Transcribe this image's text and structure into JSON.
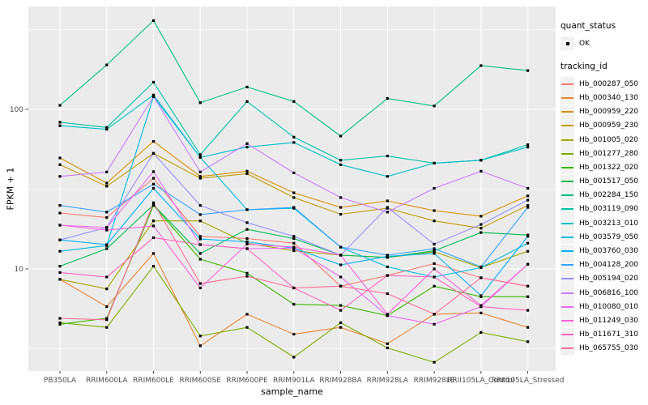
{
  "axes": {
    "x": {
      "title": "sample_name",
      "categories": [
        "PB350LA",
        "RRIM600LA",
        "RRIM600LE",
        "RRIM600SE",
        "RRIM600PE",
        "RRIM901LA",
        "RRIM928BA",
        "RRIM928LA",
        "RRIM928LE",
        "RRII105LA_Control",
        "RRII105LA_Stressed"
      ]
    },
    "y": {
      "title": "FPKM + 1",
      "tick_labels": [
        "100",
        "10"
      ],
      "tick_values": [
        100,
        10
      ],
      "minor_tick_values": [
        316.23,
        31.623,
        3.1623
      ],
      "scale": "log10"
    }
  },
  "legend": {
    "quant_status": {
      "title": "quant_status",
      "items": [
        {
          "label": "OK",
          "symbol": "point"
        }
      ]
    },
    "tracking_id": {
      "title": "tracking_id"
    }
  },
  "style": {
    "panel_background": "#EBEBEB",
    "grid_color": "#FFFFFF",
    "tick_label_color": "#4D4D4D",
    "point_color": "#000000",
    "legend_key_background": "#F2F2F2"
  },
  "chart_data": {
    "type": "line",
    "xlabel": "sample_name",
    "ylabel": "FPKM + 1",
    "yscale": "log10",
    "ylim": [
      2.3,
      440
    ],
    "grid": "major+minor white on grey panel",
    "legend_position": "right",
    "point_marker": "small black square on every data point",
    "categories": [
      "PB350LA",
      "RRIM600LA",
      "RRIM600LE",
      "RRIM600SE",
      "RRIM600PE",
      "RRIM901LA",
      "RRIM928BA",
      "RRIM928LA",
      "RRIM928LE",
      "RRII105LA_Control",
      "RRII105LA_Stressed"
    ],
    "series": [
      {
        "name": "Hb_000287_050",
        "color": "#F8766D",
        "values": [
          22.4,
          21,
          37,
          16,
          15.5,
          14.5,
          7.8,
          9.1,
          10.8,
          8.8,
          7.8
        ]
      },
      {
        "name": "Hb_000340_130",
        "color": "#EA8331",
        "values": [
          8.6,
          5.8,
          12.5,
          3.3,
          5.2,
          3.9,
          4.3,
          3.4,
          5.2,
          5.3,
          4.3
        ]
      },
      {
        "name": "Hb_000959_220",
        "color": "#D89000",
        "values": [
          49.6,
          34.5,
          63,
          38,
          41,
          30,
          24.3,
          26.7,
          23.2,
          21.4,
          28.7
        ]
      },
      {
        "name": "Hb_000959_230",
        "color": "#C09B00",
        "values": [
          45,
          33,
          53,
          37,
          39.5,
          28,
          22,
          24,
          20,
          18,
          25
        ]
      },
      {
        "name": "Hb_001005_020",
        "color": "#A3A500",
        "values": [
          8.6,
          7.5,
          20,
          20,
          14.5,
          13,
          12.2,
          11.8,
          12.8,
          10.2,
          12.9
        ]
      },
      {
        "name": "Hb_001277_280",
        "color": "#7CAE00",
        "values": [
          4.6,
          4.3,
          10.4,
          3.8,
          4.3,
          2.8,
          4.6,
          3.2,
          2.6,
          4,
          3.5
        ]
      },
      {
        "name": "Hb_001322_020",
        "color": "#39B600",
        "values": [
          4.5,
          4.9,
          25,
          11.5,
          9.4,
          6,
          5.9,
          5.1,
          7.8,
          6.7,
          6.7
        ]
      },
      {
        "name": "Hb_001517_050",
        "color": "#00BB4E",
        "values": [
          10.4,
          13.4,
          25.2,
          12.5,
          17.7,
          15.5,
          12.2,
          11.8,
          13,
          16.9,
          16.3
        ]
      },
      {
        "name": "Hb_002284_150",
        "color": "#00BF7D",
        "values": [
          106,
          190,
          360,
          110,
          138,
          112,
          68,
          117,
          105,
          188,
          175
        ]
      },
      {
        "name": "Hb_003119_090",
        "color": "#00C1A3",
        "values": [
          83,
          77,
          148,
          52,
          112,
          67,
          48,
          51,
          46,
          48,
          60
        ]
      },
      {
        "name": "Hb_003213_010",
        "color": "#00BFC4",
        "values": [
          79,
          75,
          123,
          50,
          58,
          62,
          45,
          38,
          46,
          48,
          58
        ]
      },
      {
        "name": "Hb_003579_050",
        "color": "#00BAE0",
        "values": [
          12.9,
          14,
          120,
          50,
          23.5,
          24,
          13.7,
          10.3,
          8.9,
          10.2,
          14.5
        ]
      },
      {
        "name": "Hb_003760_030",
        "color": "#00B0F6",
        "values": [
          15.2,
          14.2,
          32,
          15.4,
          14.8,
          13.5,
          10.6,
          12,
          12.5,
          6.8,
          16
        ]
      },
      {
        "name": "Hb_004128_200",
        "color": "#35A2FF",
        "values": [
          25,
          22.7,
          34,
          21.9,
          23.5,
          24.3,
          13.7,
          12.2,
          13.4,
          10.3,
          24.3
        ]
      },
      {
        "name": "Hb_005194_020",
        "color": "#9590FF",
        "values": [
          15.2,
          18.2,
          53,
          25,
          19.5,
          16,
          12.2,
          24.3,
          14.3,
          19,
          27
        ]
      },
      {
        "name": "Hb_006816_100",
        "color": "#C77CFF",
        "values": [
          38,
          40.5,
          120,
          40.5,
          61,
          40,
          28,
          22.7,
          32,
          41,
          32
        ]
      },
      {
        "name": "Hb_010080_010",
        "color": "#E76BF3",
        "values": [
          18.8,
          18.2,
          40.7,
          14.2,
          13.4,
          13.5,
          8.9,
          5.1,
          4.5,
          5.8,
          10.7
        ]
      },
      {
        "name": "Hb_011249_030",
        "color": "#FA62DB",
        "values": [
          18.8,
          17.5,
          18.6,
          7.6,
          14.3,
          13.7,
          12.2,
          5.2,
          10,
          5.9,
          10.7
        ]
      },
      {
        "name": "Hb_011671_310",
        "color": "#FF62BC",
        "values": [
          9.5,
          8.9,
          15.7,
          14.2,
          13.4,
          7.6,
          5.5,
          9.1,
          8.9,
          5.8,
          5.5
        ]
      },
      {
        "name": "Hb_065755_030",
        "color": "#FF6A98",
        "values": [
          4.9,
          4.8,
          26,
          8.1,
          9,
          7.6,
          7.8,
          7,
          5.2,
          8.8,
          7.8
        ]
      }
    ]
  }
}
